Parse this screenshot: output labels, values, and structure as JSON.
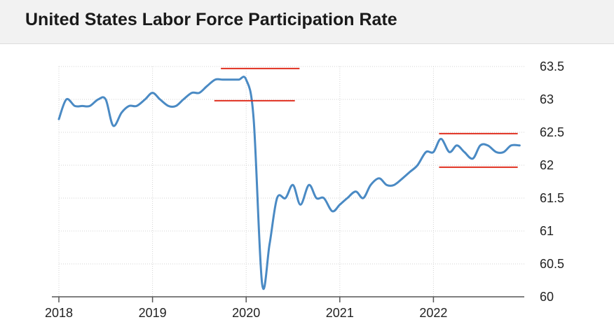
{
  "header": {
    "title": "United States Labor Force Participation Rate"
  },
  "chart_data": {
    "type": "line",
    "title": "United States Labor Force Participation Rate",
    "xlabel": "",
    "ylabel": "",
    "x_tick_labels": [
      "2018",
      "2019",
      "2020",
      "2021",
      "2022"
    ],
    "y_tick_labels": [
      "63.5",
      "63",
      "62.5",
      "62",
      "61.5",
      "61",
      "60.5",
      "60"
    ],
    "ylim": [
      60,
      63.5
    ],
    "xlim": [
      2018,
      2022.97
    ],
    "grid": true,
    "y_axis_position": "right",
    "line_color": "#4a8ac4",
    "series": [
      {
        "x": [
          2018.0,
          2018.08,
          2018.17,
          2018.25,
          2018.33,
          2018.42,
          2018.5,
          2018.58,
          2018.67,
          2018.75,
          2018.83,
          2018.92,
          2019.0,
          2019.08,
          2019.17,
          2019.25,
          2019.33,
          2019.42,
          2019.5,
          2019.58,
          2019.67,
          2019.75,
          2019.83,
          2019.92,
          2020.0,
          2020.08,
          2020.17,
          2020.25,
          2020.33,
          2020.42,
          2020.5,
          2020.58,
          2020.67,
          2020.75,
          2020.83,
          2020.92,
          2021.0,
          2021.08,
          2021.17,
          2021.25,
          2021.33,
          2021.42,
          2021.5,
          2021.58,
          2021.67,
          2021.75,
          2021.83,
          2021.92,
          2022.0,
          2022.08,
          2022.17,
          2022.25,
          2022.33,
          2022.42,
          2022.5,
          2022.58,
          2022.67,
          2022.75,
          2022.83,
          2022.92
        ],
        "values": [
          62.7,
          63.0,
          62.9,
          62.9,
          62.9,
          63.0,
          63.0,
          62.6,
          62.8,
          62.9,
          62.9,
          63.0,
          63.1,
          63.0,
          62.9,
          62.9,
          63.0,
          63.1,
          63.1,
          63.2,
          63.3,
          63.3,
          63.3,
          63.3,
          63.3,
          62.7,
          60.2,
          60.8,
          61.5,
          61.5,
          61.7,
          61.4,
          61.7,
          61.5,
          61.5,
          61.3,
          61.4,
          61.5,
          61.6,
          61.5,
          61.7,
          61.8,
          61.7,
          61.7,
          61.8,
          61.9,
          62.0,
          62.2,
          62.2,
          62.4,
          62.2,
          62.3,
          62.2,
          62.1,
          62.3,
          62.3,
          62.2,
          62.2,
          62.3,
          62.3
        ]
      }
    ],
    "annotations": [
      {
        "type": "hline",
        "y": 63.47,
        "x_start": 2019.73,
        "x_end": 2020.57,
        "color": "#e03020"
      },
      {
        "type": "hline",
        "y": 62.98,
        "x_start": 2019.66,
        "x_end": 2020.52,
        "color": "#e03020"
      },
      {
        "type": "hline",
        "y": 62.48,
        "x_start": 2022.06,
        "x_end": 2022.9,
        "color": "#e03020"
      },
      {
        "type": "hline",
        "y": 61.97,
        "x_start": 2022.06,
        "x_end": 2022.9,
        "color": "#e03020"
      }
    ]
  }
}
